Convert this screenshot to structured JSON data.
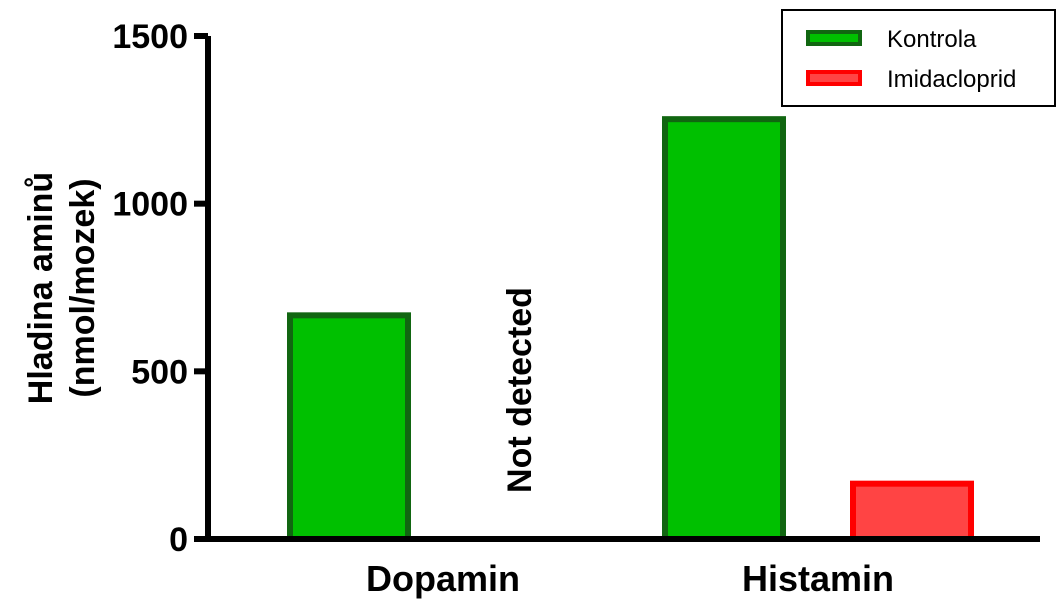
{
  "chart_data": {
    "type": "bar",
    "categories": [
      "Dopamin",
      "Histamin"
    ],
    "series": [
      {
        "name": "Kontrola",
        "values": [
          667,
          1252
        ],
        "fill": "#00c000",
        "stroke": "#116611"
      },
      {
        "name": "Imidacloprid",
        "values": [
          null,
          165
        ],
        "fill": "#ff4444",
        "stroke": "#ff0000"
      }
    ],
    "ylabel_lines": [
      "Hladina aminů",
      "(nmol/mozek)"
    ],
    "ylim": [
      0,
      1500
    ],
    "yticks": [
      0,
      500,
      1000,
      1500
    ],
    "annotations": [
      {
        "text": "Not detected",
        "category": "Dopamin",
        "series": "Imidacloprid"
      }
    ],
    "legend": {
      "placement": "top-right"
    },
    "grid": false
  }
}
